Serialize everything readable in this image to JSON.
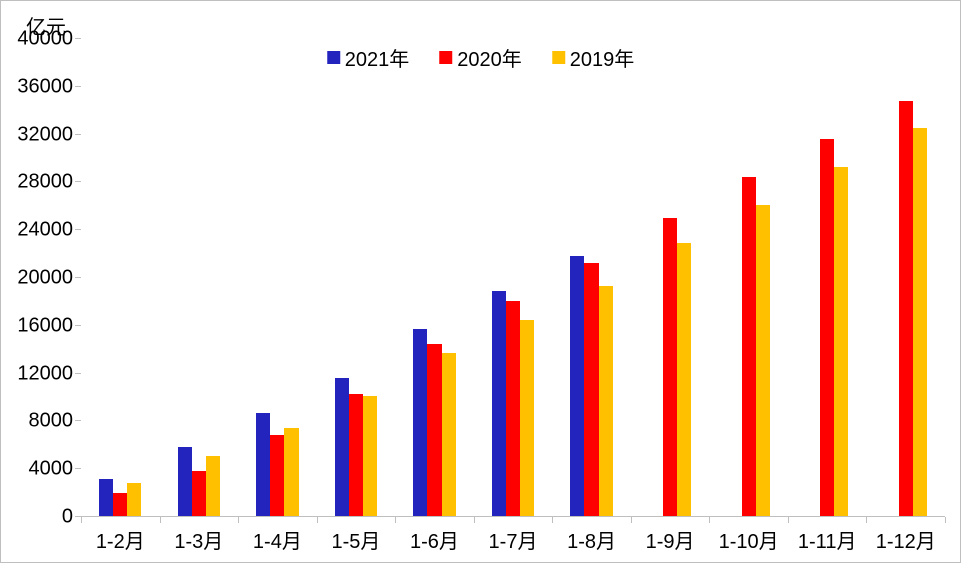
{
  "chart": {
    "type": "bar",
    "y_unit_label": "亿元",
    "y_unit_fontsize": 20,
    "background_color": "#ffffff",
    "border_color": "#bfbfbf",
    "axis_color": "#bfbfbf",
    "label_fontsize": 20,
    "ylim": [
      0,
      40000
    ],
    "ytick_step": 4000,
    "yticks": [
      0,
      4000,
      8000,
      12000,
      16000,
      20000,
      24000,
      28000,
      32000,
      36000,
      40000
    ],
    "categories": [
      "1-2月",
      "1-3月",
      "1-4月",
      "1-5月",
      "1-6月",
      "1-7月",
      "1-8月",
      "1-9月",
      "1-10月",
      "1-11月",
      "1-12月"
    ],
    "series": [
      {
        "name": "2021年",
        "color": "#2323be",
        "values": [
          3100,
          5800,
          8600,
          11600,
          15700,
          18900,
          21800,
          null,
          null,
          null,
          null
        ]
      },
      {
        "name": "2020年",
        "color": "#ff0000",
        "values": [
          1900,
          3800,
          6800,
          10200,
          14400,
          18000,
          21200,
          25000,
          28400,
          31600,
          34800
        ]
      },
      {
        "name": "2019年",
        "color": "#ffc000",
        "values": [
          2800,
          5000,
          7400,
          10100,
          13700,
          16400,
          19300,
          22900,
          26100,
          29300,
          32500
        ]
      }
    ],
    "bar_width_ratio": 0.18,
    "legend_position": "top-center"
  }
}
